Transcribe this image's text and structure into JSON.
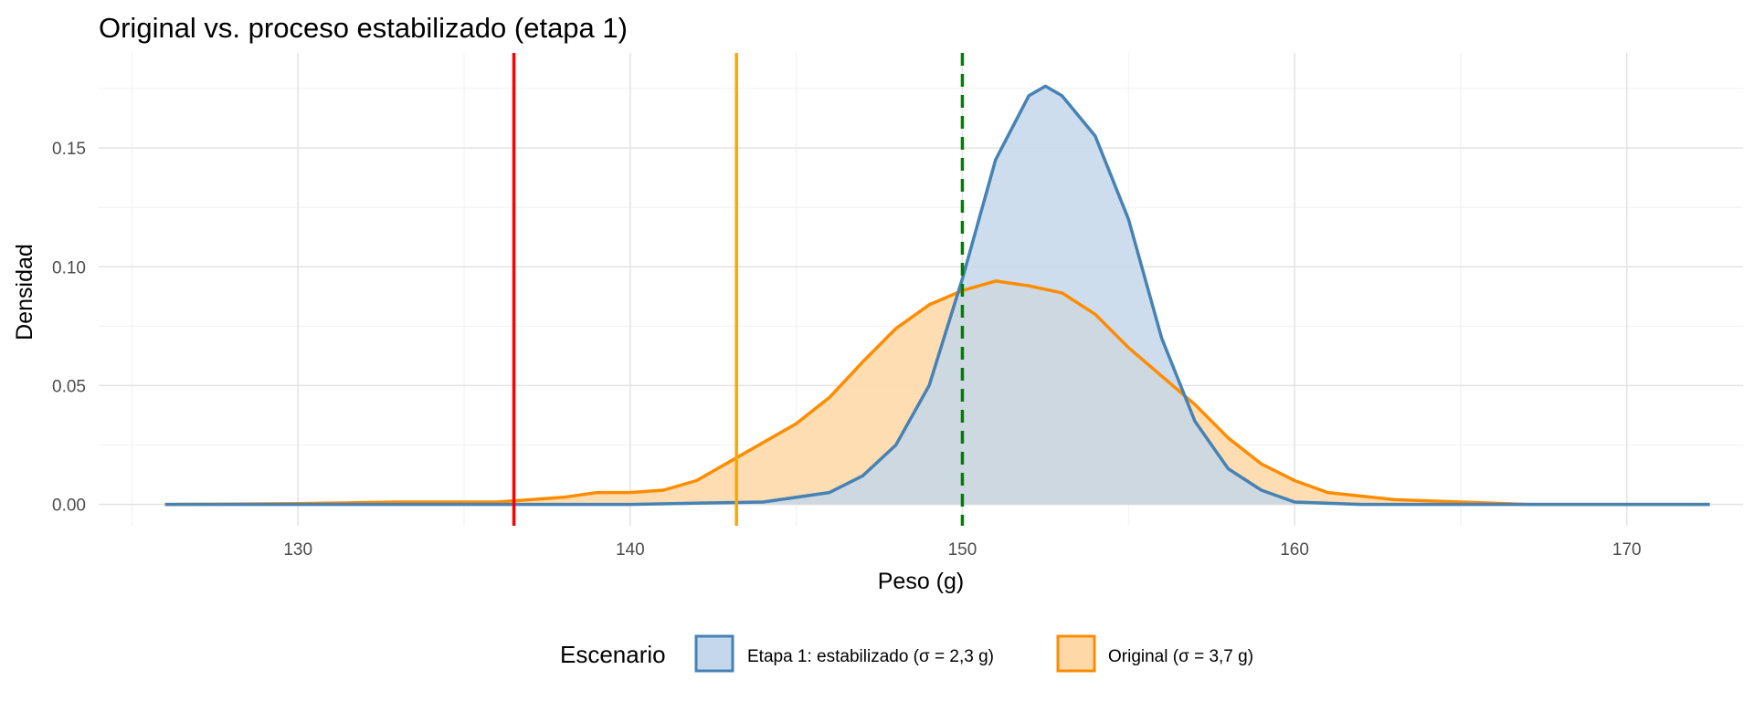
{
  "chart_data": {
    "type": "area",
    "title": "Original vs. proceso estabilizado (etapa 1)",
    "xlabel": "Peso (g)",
    "ylabel": "Densidad",
    "xlim": [
      124,
      173.5
    ],
    "ylim": [
      -0.009,
      0.19
    ],
    "x_ticks": [
      130,
      140,
      150,
      160,
      170
    ],
    "y_ticks": [
      0.0,
      0.05,
      0.1,
      0.15
    ],
    "y_tick_labels": [
      "0.00",
      "0.05",
      "0.10",
      "0.15"
    ],
    "grid": true,
    "legend": {
      "title": "Escenario",
      "position": "bottom",
      "entries": [
        {
          "label": "Etapa 1: estabilizado (σ = 2,3 g)",
          "color": "#4682b4",
          "fill": "#c5d7ea"
        },
        {
          "label": "Original (σ = 3,7 g)",
          "color": "#ff8c00",
          "fill": "#fdd9a8"
        }
      ]
    },
    "series": [
      {
        "name": "Etapa 1: estabilizado (σ = 2,3 g)",
        "color": "#4682b4",
        "fill": "#c5d7ea",
        "x": [
          126,
          140,
          144,
          146,
          147,
          148,
          149,
          150,
          151,
          152,
          152.5,
          153,
          154,
          155,
          156,
          157,
          158,
          159,
          160,
          162,
          172.5
        ],
        "y": [
          0,
          0,
          0.001,
          0.005,
          0.012,
          0.025,
          0.05,
          0.095,
          0.145,
          0.172,
          0.176,
          0.172,
          0.155,
          0.12,
          0.07,
          0.035,
          0.015,
          0.006,
          0.001,
          0,
          0
        ]
      },
      {
        "name": "Original (σ = 3,7 g)",
        "color": "#ff8c00",
        "fill": "#fdd9a8",
        "x": [
          126,
          130,
          133,
          136,
          138,
          139,
          140,
          141,
          142,
          143,
          144,
          145,
          146,
          147,
          148,
          149,
          150,
          151,
          152,
          153,
          154,
          155,
          156,
          157,
          158,
          159,
          160,
          161,
          163,
          165,
          167,
          172.5
        ],
        "y": [
          0,
          0.0003,
          0.001,
          0.001,
          0.003,
          0.005,
          0.005,
          0.006,
          0.01,
          0.018,
          0.026,
          0.034,
          0.045,
          0.06,
          0.074,
          0.084,
          0.09,
          0.094,
          0.092,
          0.089,
          0.08,
          0.066,
          0.054,
          0.042,
          0.028,
          0.017,
          0.01,
          0.005,
          0.002,
          0.001,
          0,
          0
        ]
      }
    ],
    "reference_lines": [
      {
        "x": 136.5,
        "color": "#ff0000",
        "style": "solid"
      },
      {
        "x": 143.2,
        "color": "#ffa500",
        "style": "solid"
      },
      {
        "x": 150,
        "color": "#008000",
        "style": "dashed"
      }
    ]
  }
}
